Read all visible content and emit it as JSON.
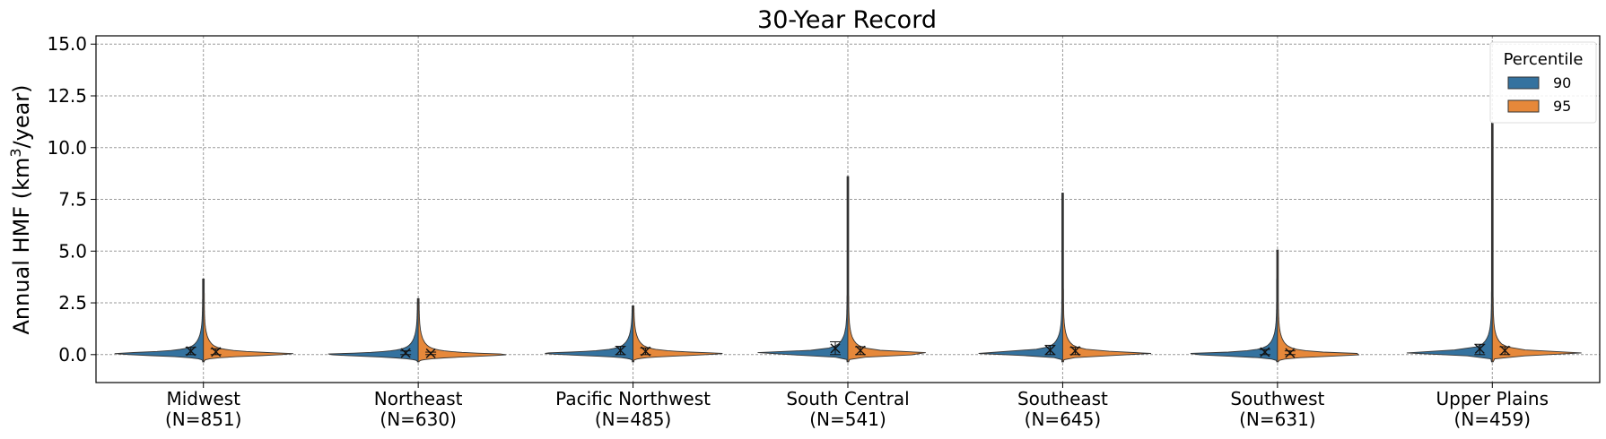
{
  "chart_data": {
    "type": "violin",
    "title": "30-Year Record",
    "ylabel": "Annual HMF (km",
    "ylabel_sup": "3",
    "ylabel_tail": "/year)",
    "ylim": [
      -1.35,
      15.4
    ],
    "yticks": [
      0.0,
      2.5,
      5.0,
      7.5,
      10.0,
      12.5,
      15.0
    ],
    "ytick_labels": [
      "0.0",
      "2.5",
      "5.0",
      "7.5",
      "10.0",
      "12.5",
      "15.0"
    ],
    "grid": true,
    "legend": {
      "title": "Percentile",
      "placement": "top-right"
    },
    "series": [
      {
        "name": "90",
        "color": "#34729f"
      },
      {
        "name": "95",
        "color": "#e6883a"
      }
    ],
    "categories": [
      {
        "name": "Midwest",
        "n": "(N=851)",
        "s90": {
          "max": 3.65,
          "mean": 0.17,
          "median": 0.07,
          "whisker": [
            0.0,
            0.35
          ]
        },
        "s95": {
          "max": 3.65,
          "mean": 0.13,
          "median": 0.06,
          "whisker": [
            0.0,
            0.28
          ]
        }
      },
      {
        "name": "Northeast",
        "n": "(N=630)",
        "s90": {
          "max": 2.7,
          "mean": 0.08,
          "median": 0.03,
          "whisker": [
            0.0,
            0.18
          ]
        },
        "s95": {
          "max": 2.7,
          "mean": 0.06,
          "median": 0.02,
          "whisker": [
            0.0,
            0.12
          ]
        }
      },
      {
        "name": "Pacific Northwest",
        "n": "(N=485)",
        "s90": {
          "max": 2.35,
          "mean": 0.2,
          "median": 0.08,
          "whisker": [
            0.0,
            0.4
          ]
        },
        "s95": {
          "max": 2.35,
          "mean": 0.16,
          "median": 0.07,
          "whisker": [
            0.0,
            0.32
          ]
        }
      },
      {
        "name": "South Central",
        "n": "(N=541)",
        "s90": {
          "max": 8.6,
          "mean": 0.3,
          "median": 0.1,
          "whisker": [
            0.0,
            0.62
          ]
        },
        "s95": {
          "max": 8.6,
          "mean": 0.2,
          "median": 0.08,
          "whisker": [
            0.0,
            0.38
          ]
        }
      },
      {
        "name": "Southeast",
        "n": "(N=645)",
        "s90": {
          "max": 7.8,
          "mean": 0.22,
          "median": 0.1,
          "whisker": [
            0.0,
            0.45
          ]
        },
        "s95": {
          "max": 7.8,
          "mean": 0.18,
          "median": 0.08,
          "whisker": [
            0.0,
            0.35
          ]
        }
      },
      {
        "name": "Southwest",
        "n": "(N=631)",
        "s90": {
          "max": 5.05,
          "mean": 0.12,
          "median": 0.05,
          "whisker": [
            0.0,
            0.25
          ]
        },
        "s95": {
          "max": 5.05,
          "mean": 0.08,
          "median": 0.04,
          "whisker": [
            0.0,
            0.18
          ]
        }
      },
      {
        "name": "Upper Plains",
        "n": "(N=459)",
        "s90": {
          "max": 11.2,
          "mean": 0.28,
          "median": 0.12,
          "whisker": [
            0.0,
            0.5
          ]
        },
        "s95": {
          "max": 11.2,
          "mean": 0.2,
          "median": 0.1,
          "whisker": [
            0.0,
            0.38
          ]
        }
      }
    ]
  }
}
